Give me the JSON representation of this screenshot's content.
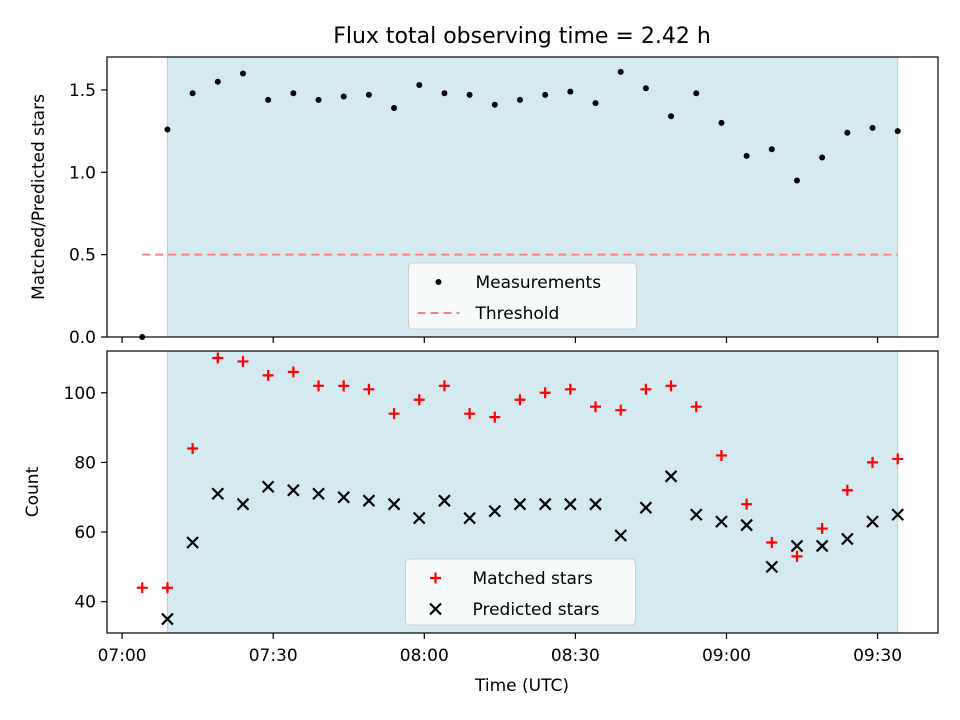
{
  "title": "Flux total observing time = 2.42 h",
  "xlabel": "Time (UTC)",
  "x_tick_labels": [
    "07:00",
    "07:30",
    "08:00",
    "08:30",
    "09:00",
    "09:30"
  ],
  "colors": {
    "shade": "#d4eaf0",
    "shade_edge": "#a8d4df",
    "threshold": "#ff7f7f",
    "matched": "#ff0000",
    "predicted": "#000000",
    "measurement": "#000000"
  },
  "chart_data": [
    {
      "type": "scatter",
      "ylabel": "Matched/Predicted stars",
      "x_range": [
        "06:57",
        "09:42"
      ],
      "ylim": [
        0,
        1.7
      ],
      "y_ticks": [
        "0.0",
        "0.5",
        "1.0",
        "1.5"
      ],
      "shaded_interval": [
        "07:09",
        "09:34"
      ],
      "threshold": {
        "name": "Threshold",
        "value": 0.5,
        "x_range": [
          "07:04",
          "09:34"
        ]
      },
      "legend": [
        "Measurements",
        "Threshold"
      ],
      "legend_position": "lower center",
      "series": [
        {
          "name": "Measurements",
          "marker": "dot",
          "x": [
            "07:04",
            "07:09",
            "07:14",
            "07:19",
            "07:24",
            "07:29",
            "07:34",
            "07:39",
            "07:44",
            "07:49",
            "07:54",
            "07:59",
            "08:04",
            "08:09",
            "08:14",
            "08:19",
            "08:24",
            "08:29",
            "08:34",
            "08:39",
            "08:44",
            "08:49",
            "08:54",
            "08:59",
            "09:04",
            "09:09",
            "09:14",
            "09:19",
            "09:24",
            "09:29",
            "09:34"
          ],
          "y": [
            0.0,
            1.26,
            1.48,
            1.55,
            1.6,
            1.44,
            1.48,
            1.44,
            1.46,
            1.47,
            1.39,
            1.53,
            1.48,
            1.47,
            1.41,
            1.44,
            1.47,
            1.49,
            1.42,
            1.61,
            1.51,
            1.34,
            1.48,
            1.3,
            1.1,
            1.14,
            0.95,
            1.09,
            1.24,
            1.27,
            1.25
          ]
        }
      ]
    },
    {
      "type": "scatter",
      "ylabel": "Count",
      "x_range": [
        "06:57",
        "09:42"
      ],
      "ylim": [
        31,
        112
      ],
      "y_ticks": [
        "40",
        "60",
        "80",
        "100"
      ],
      "shaded_interval": [
        "07:09",
        "09:34"
      ],
      "legend": [
        "Matched stars",
        "Predicted stars"
      ],
      "legend_position": "lower center",
      "series": [
        {
          "name": "Matched stars",
          "marker": "plus",
          "x": [
            "07:04",
            "07:09",
            "07:14",
            "07:19",
            "07:24",
            "07:29",
            "07:34",
            "07:39",
            "07:44",
            "07:49",
            "07:54",
            "07:59",
            "08:04",
            "08:09",
            "08:14",
            "08:19",
            "08:24",
            "08:29",
            "08:34",
            "08:39",
            "08:44",
            "08:49",
            "08:54",
            "08:59",
            "09:04",
            "09:09",
            "09:14",
            "09:19",
            "09:24",
            "09:29",
            "09:34"
          ],
          "y": [
            44,
            44,
            84,
            110,
            109,
            105,
            106,
            102,
            102,
            101,
            94,
            98,
            102,
            94,
            93,
            98,
            100,
            101,
            96,
            95,
            101,
            102,
            96,
            82,
            68,
            57,
            53,
            61,
            72,
            80,
            81
          ]
        },
        {
          "name": "Predicted stars",
          "marker": "x",
          "x": [
            "07:09",
            "07:14",
            "07:19",
            "07:24",
            "07:29",
            "07:34",
            "07:39",
            "07:44",
            "07:49",
            "07:54",
            "07:59",
            "08:04",
            "08:09",
            "08:14",
            "08:19",
            "08:24",
            "08:29",
            "08:34",
            "08:39",
            "08:44",
            "08:49",
            "08:54",
            "08:59",
            "09:04",
            "09:09",
            "09:14",
            "09:19",
            "09:24",
            "09:29",
            "09:34"
          ],
          "y": [
            35,
            57,
            71,
            68,
            73,
            72,
            71,
            70,
            69,
            68,
            64,
            69,
            64,
            66,
            68,
            68,
            68,
            68,
            59,
            67,
            76,
            65,
            63,
            62,
            50,
            56,
            56,
            58,
            63,
            65
          ]
        }
      ]
    }
  ]
}
